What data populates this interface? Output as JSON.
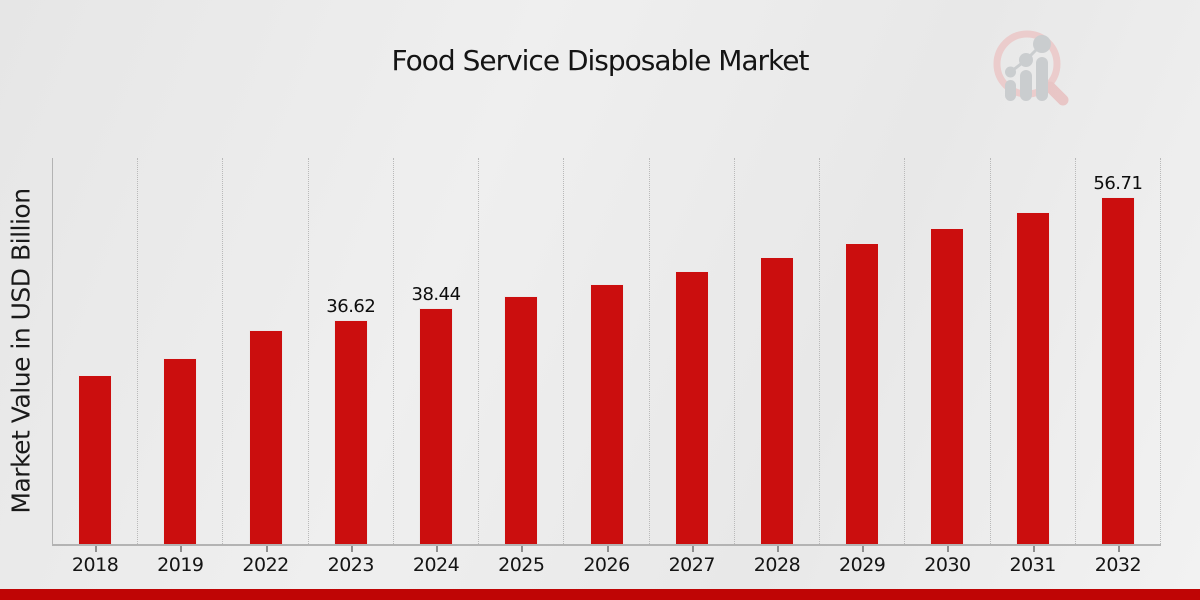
{
  "chart": {
    "title": "Food Service Disposable Market",
    "ylabel": "Market Value in USD Billion"
  },
  "chart_data": {
    "type": "bar",
    "title": "Food Service Disposable Market",
    "xlabel": "",
    "ylabel": "Market Value in USD Billion",
    "categories": [
      "2018",
      "2019",
      "2022",
      "2023",
      "2024",
      "2025",
      "2026",
      "2027",
      "2028",
      "2029",
      "2030",
      "2031",
      "2032"
    ],
    "values": [
      27.6,
      30.4,
      34.9,
      36.62,
      38.44,
      40.4,
      42.4,
      44.6,
      46.8,
      49.1,
      51.6,
      54.2,
      56.71
    ],
    "value_labels": {
      "2023": "36.62",
      "2024": "38.44",
      "2032": "56.71"
    },
    "ylim": [
      0,
      63
    ],
    "grid": "vertical-dotted-between-categories",
    "legend": "none",
    "y_tick_labels": "none",
    "bar_color": "#cb0e0e",
    "accent_bar_color": "#bf0505",
    "background_color": "#ebebeb"
  },
  "logo": {
    "name": "market-research-magnifier-watermark",
    "ring_color": "#ecc9c9",
    "figure_color": "#c7cacd"
  }
}
